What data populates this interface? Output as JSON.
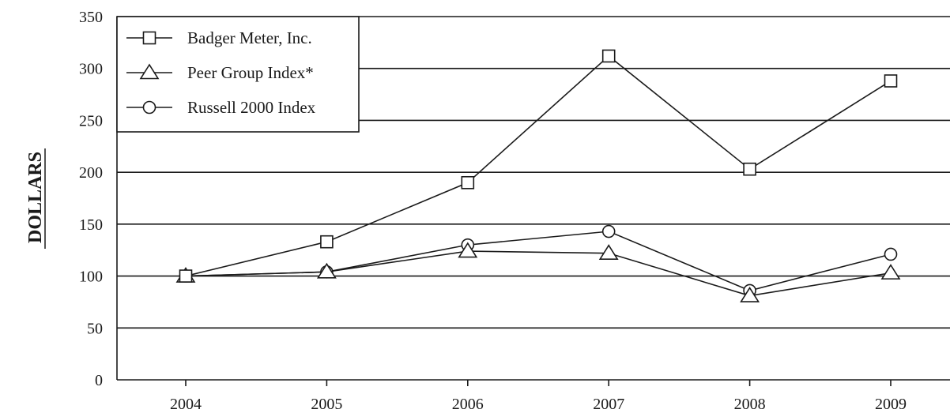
{
  "chart_data": {
    "type": "line",
    "title": "",
    "xlabel": "",
    "ylabel": "DOLLARS",
    "categories": [
      "2004",
      "2005",
      "2006",
      "2007",
      "2008",
      "2009"
    ],
    "ylim": [
      0,
      350
    ],
    "yticks": [
      0,
      50,
      100,
      150,
      200,
      250,
      300,
      350
    ],
    "grid": true,
    "legend_position": "top-left",
    "series": [
      {
        "name": "Badger Meter, Inc.",
        "marker": "square",
        "values": [
          100,
          133,
          190,
          312,
          203,
          288
        ]
      },
      {
        "name": "Peer Group Index*",
        "marker": "triangle",
        "values": [
          100,
          104,
          124,
          122,
          81,
          103
        ]
      },
      {
        "name": "Russell 2000 Index",
        "marker": "circle",
        "values": [
          100,
          104,
          130,
          143,
          86,
          121
        ]
      }
    ],
    "colors": {
      "line": "#1a1a1a",
      "grid": "#1a1a1a",
      "marker_fill": "#ffffff"
    }
  }
}
